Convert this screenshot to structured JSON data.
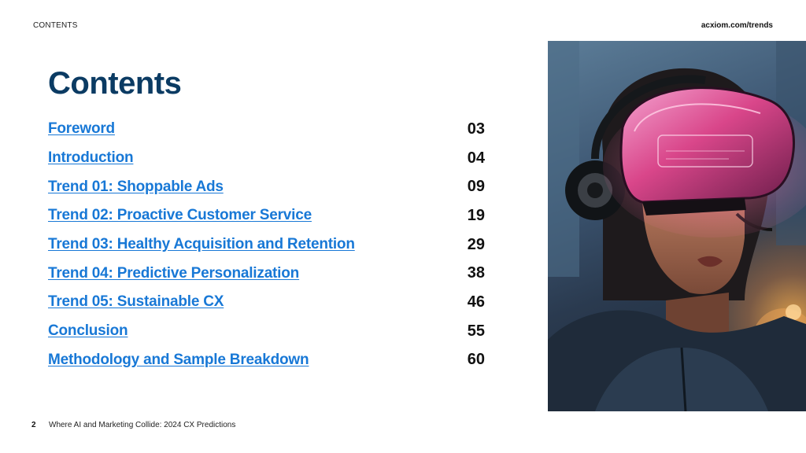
{
  "header": {
    "section_label": "CONTENTS",
    "site_url": "acxiom.com/trends"
  },
  "title": "Contents",
  "toc": [
    {
      "label": "Foreword",
      "page": "03"
    },
    {
      "label": "Introduction",
      "page": "04"
    },
    {
      "label": "Trend 01: Shoppable Ads",
      "page": "09"
    },
    {
      "label": "Trend 02: Proactive Customer Service",
      "page": "19"
    },
    {
      "label": "Trend 03: Healthy Acquisition and Retention",
      "page": "29"
    },
    {
      "label": "Trend 04: Predictive Personalization",
      "page": "38"
    },
    {
      "label": "Trend 05: Sustainable CX",
      "page": "46"
    },
    {
      "label": "Conclusion",
      "page": "55"
    },
    {
      "label": "Methodology and Sample Breakdown",
      "page": "60"
    }
  ],
  "footer": {
    "page_number": "2",
    "doc_title": "Where AI and Marketing Collide: 2024 CX Predictions"
  },
  "colors": {
    "title": "#0b3b63",
    "link": "#1878d6"
  }
}
